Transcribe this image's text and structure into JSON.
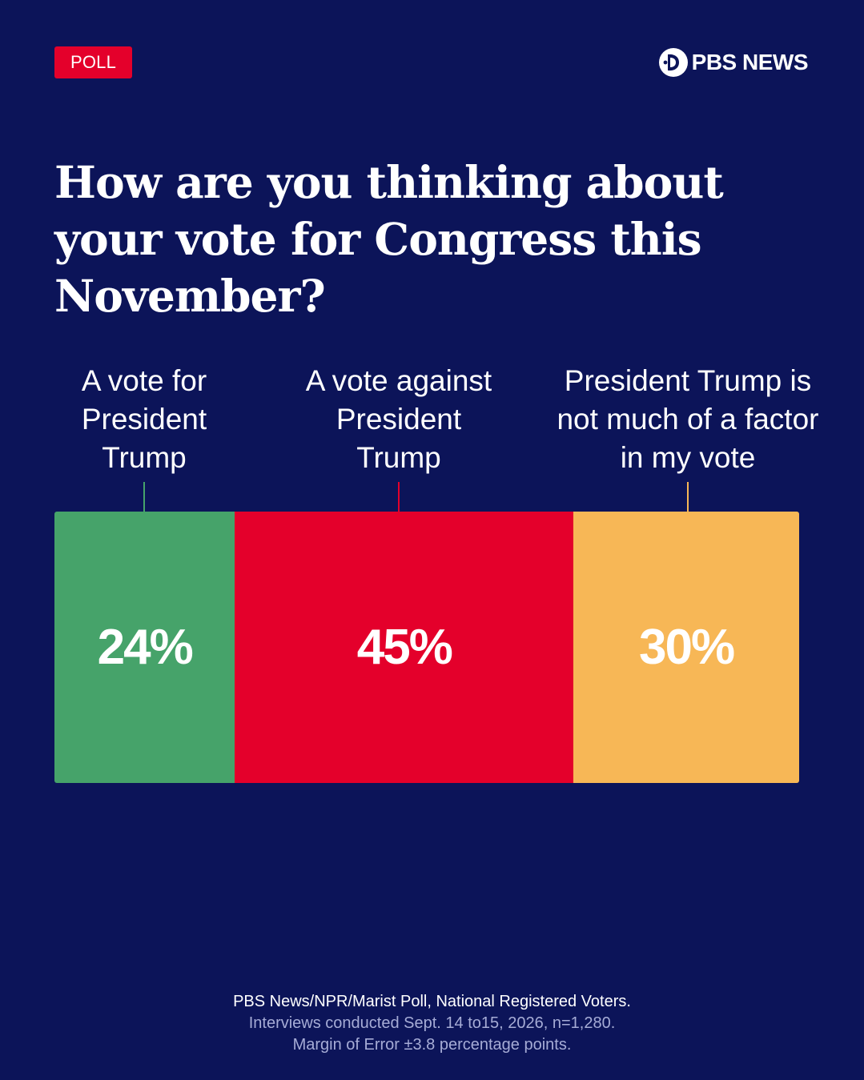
{
  "badge": "POLL",
  "brand": {
    "logo_icon": "pbs-head-icon",
    "name": "PBS NEWS"
  },
  "chart_data": {
    "type": "bar",
    "orientation": "stacked-horizontal",
    "title": "How are you thinking about your vote for Congress this November?",
    "categories": [
      "A vote for President Trump",
      "A vote against President Trump",
      "President Trump is not much of a factor in my vote"
    ],
    "label_lines": [
      [
        "A vote for",
        "President",
        "Trump"
      ],
      [
        "A vote against",
        "President",
        "Trump"
      ],
      [
        "President Trump is",
        "not much of a factor",
        "in my vote"
      ]
    ],
    "values": [
      24,
      45,
      30
    ],
    "value_labels": [
      "24%",
      "45%",
      "30%"
    ],
    "unit": "%",
    "colors": [
      "#46a36a",
      "#e4002b",
      "#f7b756"
    ]
  },
  "footer": {
    "source": "PBS News/NPR/Marist Poll, National Registered Voters.",
    "interviews": "Interviews conducted Sept. 14 to15, 2026, n=1,280.",
    "margin": "Margin of Error ±3.8 percentage points."
  },
  "colors": {
    "background": "#0c1459",
    "badge": "#e4002b"
  }
}
